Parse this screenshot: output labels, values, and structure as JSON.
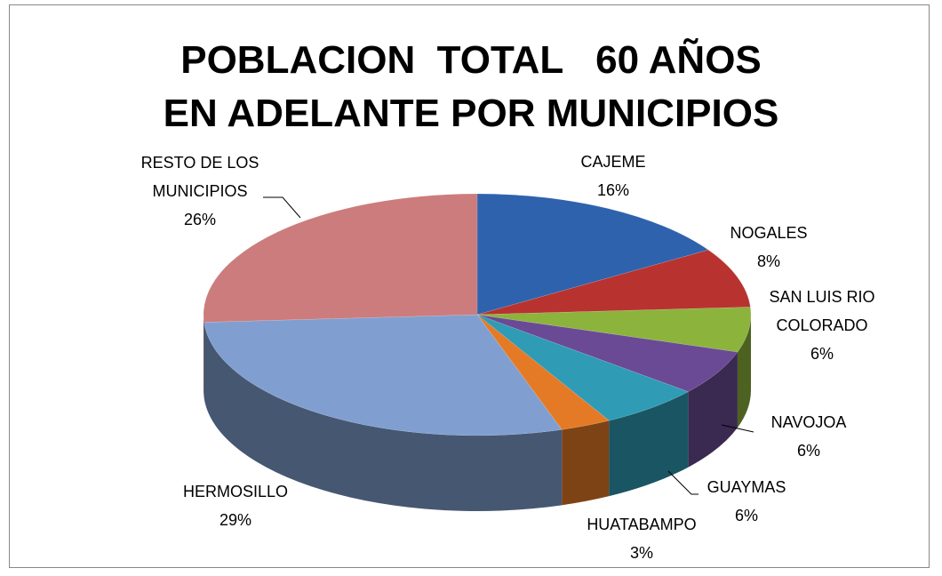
{
  "chart_data": {
    "type": "pie3d",
    "title": "POBLACION  TOTAL   60 AÑOS EN ADELANTE POR MUNICIPIOS",
    "categories": [
      "CAJEME",
      "NOGALES",
      "SAN LUIS RIO COLORADO",
      "NAVOJOA",
      "GUAYMAS",
      "HUATABAMPO",
      "HERMOSILLO",
      "RESTO DE LOS MUNICIPIOS"
    ],
    "values": [
      16,
      8,
      6,
      6,
      6,
      3,
      29,
      26
    ],
    "value_labels": [
      "16%",
      "8%",
      "6%",
      "6%",
      "6%",
      "3%",
      "29%",
      "26%"
    ],
    "colors": [
      "#2f62ad",
      "#b8332f",
      "#8cb33c",
      "#6a4a94",
      "#2f9bb5",
      "#e57a26",
      "#809fd0",
      "#cc7c7c"
    ]
  }
}
